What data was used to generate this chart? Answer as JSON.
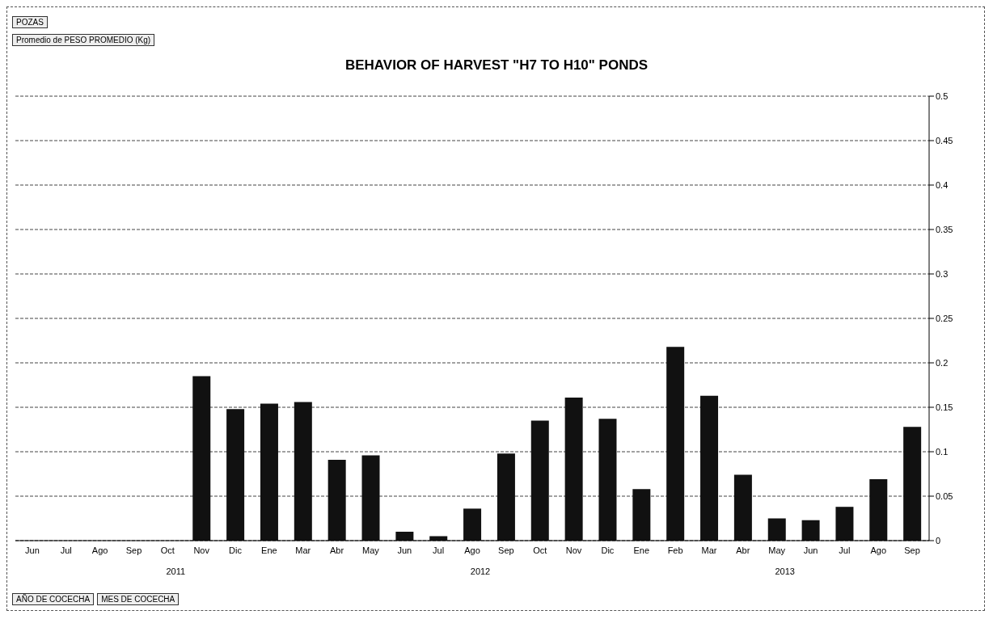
{
  "chart_data": {
    "type": "bar",
    "title": "BEHAVIOR OF HARVEST \"H7 TO H10\" PONDS",
    "categories": [
      "Jun",
      "Jul",
      "Ago",
      "Sep",
      "Oct",
      "Nov",
      "Dic",
      "Ene",
      "Mar",
      "Abr",
      "May",
      "Jun",
      "Jul",
      "Ago",
      "Sep",
      "Oct",
      "Nov",
      "Dic",
      "Ene",
      "Feb",
      "Mar",
      "Abr",
      "May",
      "Jun",
      "Jul",
      "Ago",
      "Sep"
    ],
    "values": [
      0,
      0,
      0,
      0,
      0,
      0.185,
      0.148,
      0.154,
      0.156,
      0.091,
      0.096,
      0.01,
      0.005,
      0.036,
      0.098,
      0.135,
      0.161,
      0.137,
      0.058,
      0.218,
      0.163,
      0.074,
      0.025,
      0.023,
      0.038,
      0.069,
      0.128
    ],
    "color": "#111111",
    "ylim": [
      0,
      0.5
    ],
    "yticks": [
      0,
      0.05,
      0.1,
      0.15,
      0.2,
      0.25,
      0.3,
      0.35,
      0.4,
      0.45,
      0.5
    ],
    "grid": "y",
    "legend": false,
    "annotations": [
      "POZAS",
      "Promedio de PESO PROMEDIO (Kg)",
      "2011",
      "2012",
      "2013",
      "AÑO DE COCECHA",
      "MES DE COCECHA"
    ]
  }
}
